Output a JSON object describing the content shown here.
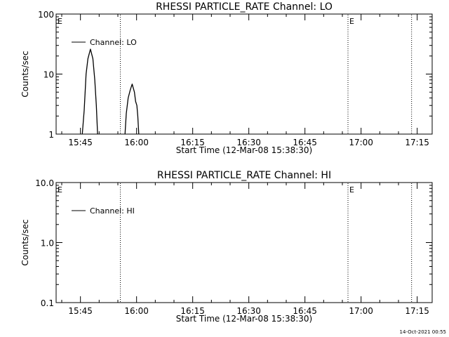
{
  "timestamp": "14-Oct-2021 00:55",
  "chart_data": [
    {
      "type": "line",
      "title": "RHESSI PARTICLE_RATE Channel: LO",
      "xlabel": "Start Time (12-Mar-08 15:38:30)",
      "ylabel": "Counts/sec",
      "y_scale": "log",
      "ylim": [
        1,
        100
      ],
      "y_ticks": [
        1,
        10,
        100
      ],
      "y_tick_labels": [
        "1",
        "10",
        "100"
      ],
      "xlim": [
        "15:38:30",
        "17:19:00"
      ],
      "x_ticks": [
        "15:45",
        "16:00",
        "16:15",
        "16:30",
        "16:45",
        "17:00",
        "17:15"
      ],
      "markers": [
        {
          "label": "E",
          "time": "15:38:30",
          "style": "none"
        },
        {
          "label": "",
          "time": "15:55:40",
          "style": "dotted"
        },
        {
          "label": "E",
          "time": "16:56:30",
          "style": "dotted"
        },
        {
          "label": "",
          "time": "17:13:30",
          "style": "dotted"
        }
      ],
      "legend": {
        "position": "top-left",
        "entries": [
          "Channel: LO"
        ]
      },
      "series": [
        {
          "name": "Channel: LO",
          "segments": [
            [
              [
                "15:45:30",
                1.0
              ],
              [
                "15:46:00",
                2.5
              ],
              [
                "15:46:30",
                10
              ],
              [
                "15:47:00",
                18
              ],
              [
                "15:47:40",
                26
              ],
              [
                "15:48:20",
                18
              ],
              [
                "15:48:50",
                8
              ],
              [
                "15:49:15",
                3
              ],
              [
                "15:49:35",
                1.0
              ]
            ],
            [
              [
                "15:56:55",
                1.0
              ],
              [
                "15:57:15",
                2.2
              ],
              [
                "15:57:45",
                4.0
              ],
              [
                "15:58:20",
                5.5
              ],
              [
                "15:58:50",
                6.8
              ],
              [
                "15:59:25",
                5.0
              ],
              [
                "15:59:45",
                3.5
              ],
              [
                "16:00:05",
                3.0
              ],
              [
                "16:00:20",
                2.0
              ],
              [
                "16:00:35",
                1.0
              ]
            ]
          ]
        }
      ]
    },
    {
      "type": "line",
      "title": "RHESSI PARTICLE_RATE Channel: HI",
      "xlabel": "Start Time (12-Mar-08 15:38:30)",
      "ylabel": "Counts/sec",
      "y_scale": "log",
      "ylim": [
        0.1,
        10
      ],
      "y_ticks": [
        0.1,
        1,
        10
      ],
      "y_tick_labels": [
        "0.1",
        "1.0",
        "10.0"
      ],
      "xlim": [
        "15:38:30",
        "17:19:00"
      ],
      "x_ticks": [
        "15:45",
        "16:00",
        "16:15",
        "16:30",
        "16:45",
        "17:00",
        "17:15"
      ],
      "markers": [
        {
          "label": "E",
          "time": "15:38:30",
          "style": "none"
        },
        {
          "label": "",
          "time": "15:55:40",
          "style": "dotted"
        },
        {
          "label": "E",
          "time": "16:56:30",
          "style": "dotted"
        },
        {
          "label": "",
          "time": "17:13:30",
          "style": "dotted"
        }
      ],
      "legend": {
        "position": "top-left",
        "entries": [
          "Channel: HI"
        ]
      },
      "series": [
        {
          "name": "Channel: HI",
          "segments": []
        }
      ]
    }
  ]
}
